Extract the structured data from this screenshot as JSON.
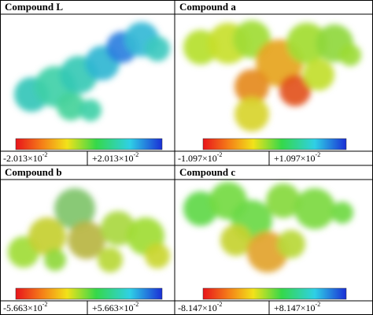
{
  "panels": [
    {
      "title": "Compound L",
      "scale_min": {
        "base": "-2.013×10",
        "exponent": "-2"
      },
      "scale_max": {
        "base": "+2.013×10",
        "exponent": "-2"
      }
    },
    {
      "title": "Compound a",
      "scale_min": {
        "base": "-1.097×10",
        "exponent": "-2"
      },
      "scale_max": {
        "base": "+1.097×10",
        "exponent": "-2"
      }
    },
    {
      "title": "Compound b",
      "scale_min": {
        "base": "-5.663×10",
        "exponent": "-2"
      },
      "scale_max": {
        "base": "+5.663×10",
        "exponent": "-2"
      }
    },
    {
      "title": "Compound c",
      "scale_min": {
        "base": "-8.147×10",
        "exponent": "-2"
      },
      "scale_max": {
        "base": "+8.147×10",
        "exponent": "-2"
      }
    }
  ]
}
